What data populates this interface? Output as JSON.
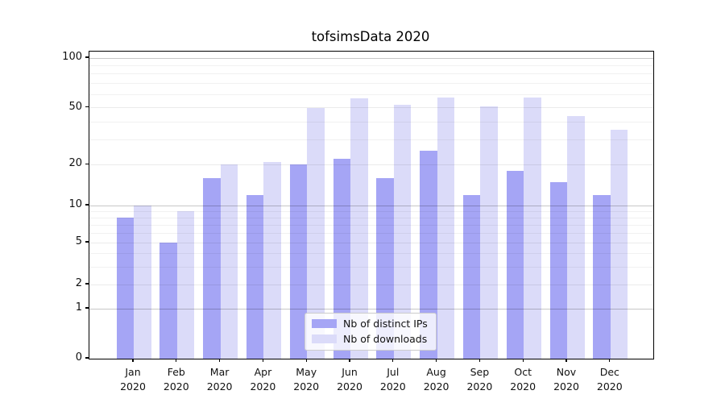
{
  "title": "tofsimsData 2020",
  "chart_data": {
    "type": "bar",
    "title": "tofsimsData 2020",
    "categories": [
      "Jan 2020",
      "Feb 2020",
      "Mar 2020",
      "Apr 2020",
      "May 2020",
      "Jun 2020",
      "Jul 2020",
      "Aug 2020",
      "Sep 2020",
      "Oct 2020",
      "Nov 2020",
      "Dec 2020"
    ],
    "series": [
      {
        "name": "Nb of distinct IPs",
        "color": "#a5a5f5",
        "values": [
          8,
          5,
          16,
          12,
          20,
          22,
          16,
          25,
          12,
          18,
          15,
          12
        ]
      },
      {
        "name": "Nb of downloads",
        "color": "#dbdbf9",
        "values": [
          10,
          9,
          20,
          21,
          50,
          57,
          52,
          58,
          51,
          58,
          44,
          35
        ]
      }
    ],
    "xlabel": "",
    "ylabel": "",
    "yscale": "log1p",
    "ylim": [
      0,
      110
    ],
    "y_ticks": [
      0,
      1,
      2,
      5,
      10,
      20,
      50,
      100
    ],
    "y_minor_ticks": [
      3,
      4,
      6,
      7,
      8,
      9,
      30,
      40,
      60,
      70,
      80,
      90
    ],
    "grid": true,
    "legend": {
      "position": "bottom-center",
      "entries": [
        "Nb of distinct IPs",
        "Nb of downloads"
      ]
    }
  },
  "colors": {
    "background": "#ffffff",
    "bar_distinct_ips": "#a5a5f5",
    "bar_downloads": "#dbdbf9",
    "grid_major": "#c7c7c7",
    "grid_minor": "#f0f0f0",
    "spine": "#000000",
    "legend_border": "#cccccc",
    "text": "#111111"
  }
}
